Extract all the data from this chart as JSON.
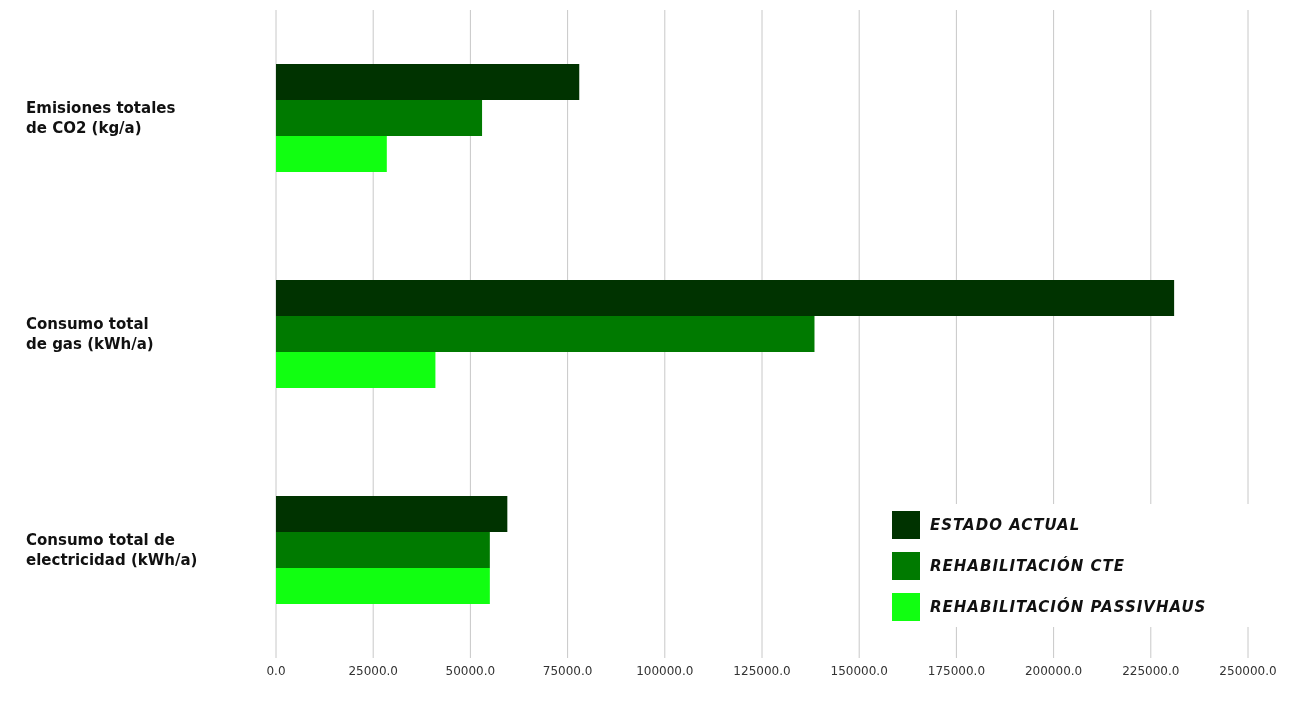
{
  "chart_data": {
    "type": "bar",
    "orientation": "horizontal",
    "categories": [
      "Emisiones totales\nde CO2 (kg/a)",
      "Consumo total\nde gas (kWh/a)",
      "Consumo total de\nelectricidad (kWh/a)"
    ],
    "series": [
      {
        "name": "ESTADO ACTUAL",
        "color": "#003300",
        "values": [
          78000,
          231000,
          59500
        ]
      },
      {
        "name": "REHABILITACIÓN CTE",
        "color": "#007a00",
        "values": [
          53000,
          138500,
          55000
        ]
      },
      {
        "name": "REHABILITACIÓN PASSIVHAUS",
        "color": "#11ff11",
        "values": [
          28500,
          41000,
          55000
        ]
      }
    ],
    "xlim": [
      0,
      250000
    ],
    "xticks": [
      {
        "value": 0,
        "label": "0.0"
      },
      {
        "value": 25000,
        "label": "25000.0"
      },
      {
        "value": 50000,
        "label": "50000.0"
      },
      {
        "value": 75000,
        "label": "75000.0"
      },
      {
        "value": 100000,
        "label": "100000.0"
      },
      {
        "value": 125000,
        "label": "125000.0"
      },
      {
        "value": 150000,
        "label": "150000.0"
      },
      {
        "value": 175000,
        "label": "175000.0"
      },
      {
        "value": 200000,
        "label": "200000.0"
      },
      {
        "value": 225000,
        "label": "225000.0"
      },
      {
        "value": 250000,
        "label": "250000.0"
      }
    ],
    "grid": "x",
    "legend": "bottom right"
  }
}
